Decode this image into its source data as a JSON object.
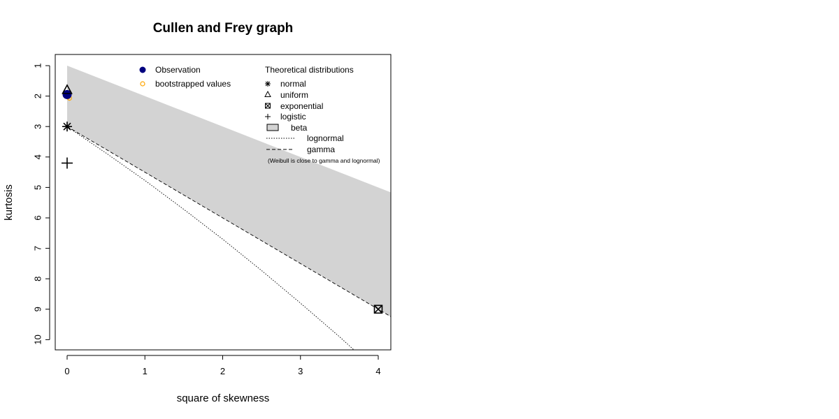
{
  "chart_data": {
    "type": "scatter",
    "title": "Cullen and Frey graph",
    "xlabel": "square of skewness",
    "ylabel": "kurtosis",
    "xlim": [
      0,
      4
    ],
    "ylim": [
      10,
      1
    ],
    "x_ticks": [
      "0",
      "1",
      "2",
      "3",
      "4"
    ],
    "y_ticks": [
      "1",
      "2",
      "3",
      "4",
      "5",
      "6",
      "7",
      "8",
      "9",
      "10"
    ],
    "observation": {
      "x": 0.0,
      "y": 1.95,
      "color": "#00007f"
    },
    "bootstrapped": {
      "color": "#ffa500",
      "points": [
        [
          0.0,
          1.9
        ],
        [
          0.005,
          1.93
        ],
        [
          0.01,
          1.97
        ],
        [
          0.02,
          2.0
        ],
        [
          0.01,
          2.03
        ],
        [
          0.03,
          2.07
        ],
        [
          0.0,
          2.0
        ],
        [
          0.015,
          1.95
        ]
      ]
    },
    "theoretical": {
      "normal": {
        "x": 0,
        "y": 3
      },
      "uniform": {
        "x": 0,
        "y": 1.8
      },
      "exponential": {
        "x": 4,
        "y": 9
      },
      "logistic": {
        "x": 0,
        "y": 4.2
      },
      "beta_region": [
        [
          0,
          1
        ],
        [
          4.2,
          5.2
        ],
        [
          4.2,
          9.3
        ],
        [
          0,
          3
        ]
      ],
      "beta_color": "#d3d3d3",
      "gamma_line": [
        [
          0,
          3
        ],
        [
          4.2,
          9.3
        ]
      ],
      "lognormal_line": [
        [
          0,
          3
        ],
        [
          0.5,
          3.87
        ],
        [
          1,
          4.77
        ],
        [
          1.5,
          5.72
        ],
        [
          2,
          6.7
        ],
        [
          2.5,
          7.73
        ],
        [
          3,
          8.8
        ],
        [
          3.5,
          9.9
        ],
        [
          3.8,
          10.6
        ]
      ]
    },
    "legend_left": {
      "observation": "Observation",
      "bootstrapped": "bootstrapped values"
    },
    "legend_right": {
      "heading": "Theoretical distributions",
      "normal": "normal",
      "uniform": "uniform",
      "exponential": "exponential",
      "logistic": "logistic",
      "beta": "beta",
      "lognormal": "lognormal",
      "gamma": "gamma",
      "note": "(Weibull is close to gamma and lognormal)"
    }
  }
}
